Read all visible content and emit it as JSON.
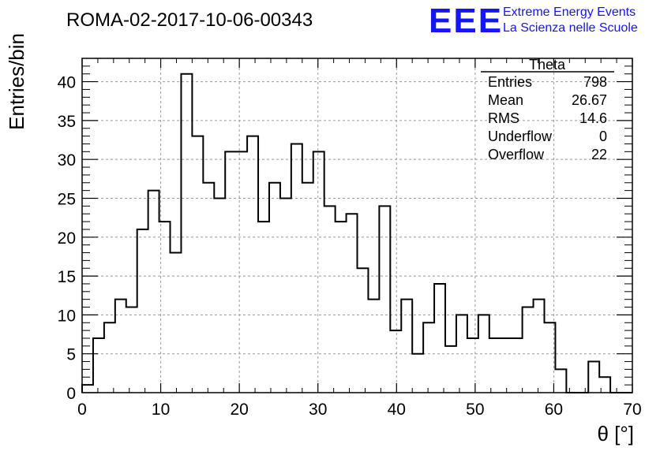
{
  "title": "ROMA-02-2017-10-06-00343",
  "logo": {
    "mark": "EEE",
    "line1": "Extreme Energy Events",
    "line2": "La Scienza nelle Scuole",
    "color": "#1414ff"
  },
  "stats_box": {
    "name": "Theta",
    "rows": [
      {
        "label": "Entries",
        "value": "798"
      },
      {
        "label": "Mean",
        "value": "26.67"
      },
      {
        "label": "RMS",
        "value": "14.6"
      },
      {
        "label": "Underflow",
        "value": "0"
      },
      {
        "label": "Overflow",
        "value": "22"
      }
    ]
  },
  "chart_data": {
    "type": "bar",
    "style": "step-histogram",
    "title": "ROMA-02-2017-10-06-00343",
    "xlabel": "θ [°]",
    "ylabel": "Entries/bin",
    "xlim": [
      0,
      70
    ],
    "ylim": [
      0,
      43
    ],
    "grid": true,
    "bin_width": 1.4,
    "x_ticks": [
      0,
      10,
      20,
      30,
      40,
      50,
      60,
      70
    ],
    "y_ticks": [
      0,
      5,
      10,
      15,
      20,
      25,
      30,
      35,
      40
    ],
    "values": [
      1,
      7,
      9,
      12,
      11,
      21,
      26,
      22,
      18,
      41,
      33,
      27,
      25,
      31,
      31,
      33,
      22,
      27,
      25,
      32,
      27,
      31,
      24,
      22,
      23,
      16,
      12,
      24,
      8,
      12,
      5,
      9,
      14,
      6,
      10,
      7,
      10,
      7,
      7,
      7,
      11,
      12,
      9,
      3,
      0,
      0,
      4,
      2,
      0,
      0
    ]
  }
}
